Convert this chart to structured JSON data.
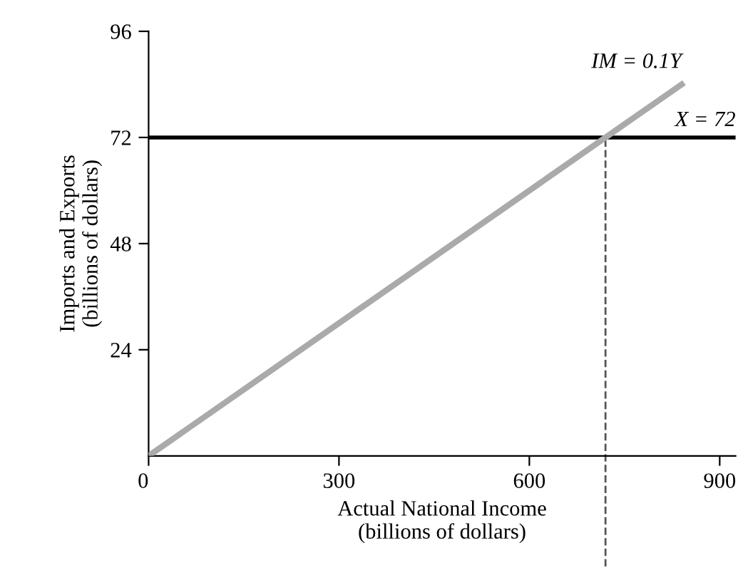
{
  "chart_data": {
    "type": "line",
    "xlabel": "Actual National Income\n(billions of dollars)",
    "ylabel": "Imports and Exports\n(billions of dollars)",
    "series": [
      {
        "x": [
          0,
          840
        ],
        "values": [
          0,
          84
        ],
        "color": "#aaaaaa"
      }
    ],
    "xlim": [
      0,
      925
    ],
    "ylim": [
      0,
      96
    ],
    "xticks": [
      0,
      300,
      600,
      900
    ],
    "yticks": [
      24,
      48,
      72,
      96
    ],
    "grid": false,
    "legend": false,
    "ref_lines": [
      {
        "axis": "y",
        "value": 72,
        "label": "X = 72",
        "color": "#000000",
        "line_style": "solid"
      },
      {
        "axis": "x",
        "value": 720,
        "color": "#555555",
        "line_style": "dashed"
      }
    ],
    "annotations": [
      {
        "text": "IM = 0.1Y",
        "x": 840,
        "y": 84
      }
    ]
  }
}
